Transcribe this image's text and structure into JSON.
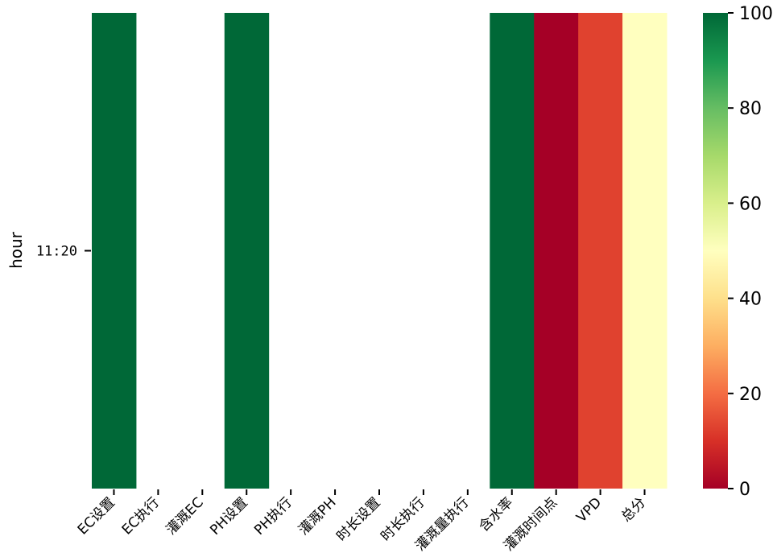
{
  "chart_data": {
    "type": "heatmap",
    "ylabel": "hour",
    "rows": [
      "11:20"
    ],
    "columns": [
      "EC设置",
      "EC执行",
      "灌溉EC",
      "PH设置",
      "PH执行",
      "灌溉PH",
      "时长设置",
      "时长执行",
      "灌溉量执行",
      "含水率",
      "灌溉时间点",
      "VPD",
      "总分"
    ],
    "values": [
      [
        100,
        null,
        null,
        100,
        null,
        null,
        null,
        null,
        null,
        100,
        0,
        13,
        50
      ]
    ],
    "colorbar": {
      "min": 0,
      "max": 100,
      "ticks": [
        0,
        20,
        40,
        60,
        80,
        100
      ],
      "colormap": "RdYlGn",
      "stops": [
        "#a50026",
        "#d73027",
        "#f46d43",
        "#fdae61",
        "#fee08b",
        "#ffffbf",
        "#d9ef8b",
        "#a6d96a",
        "#66bd63",
        "#1a9850",
        "#006837"
      ]
    },
    "grid": false,
    "legend": "colorbar-right"
  }
}
